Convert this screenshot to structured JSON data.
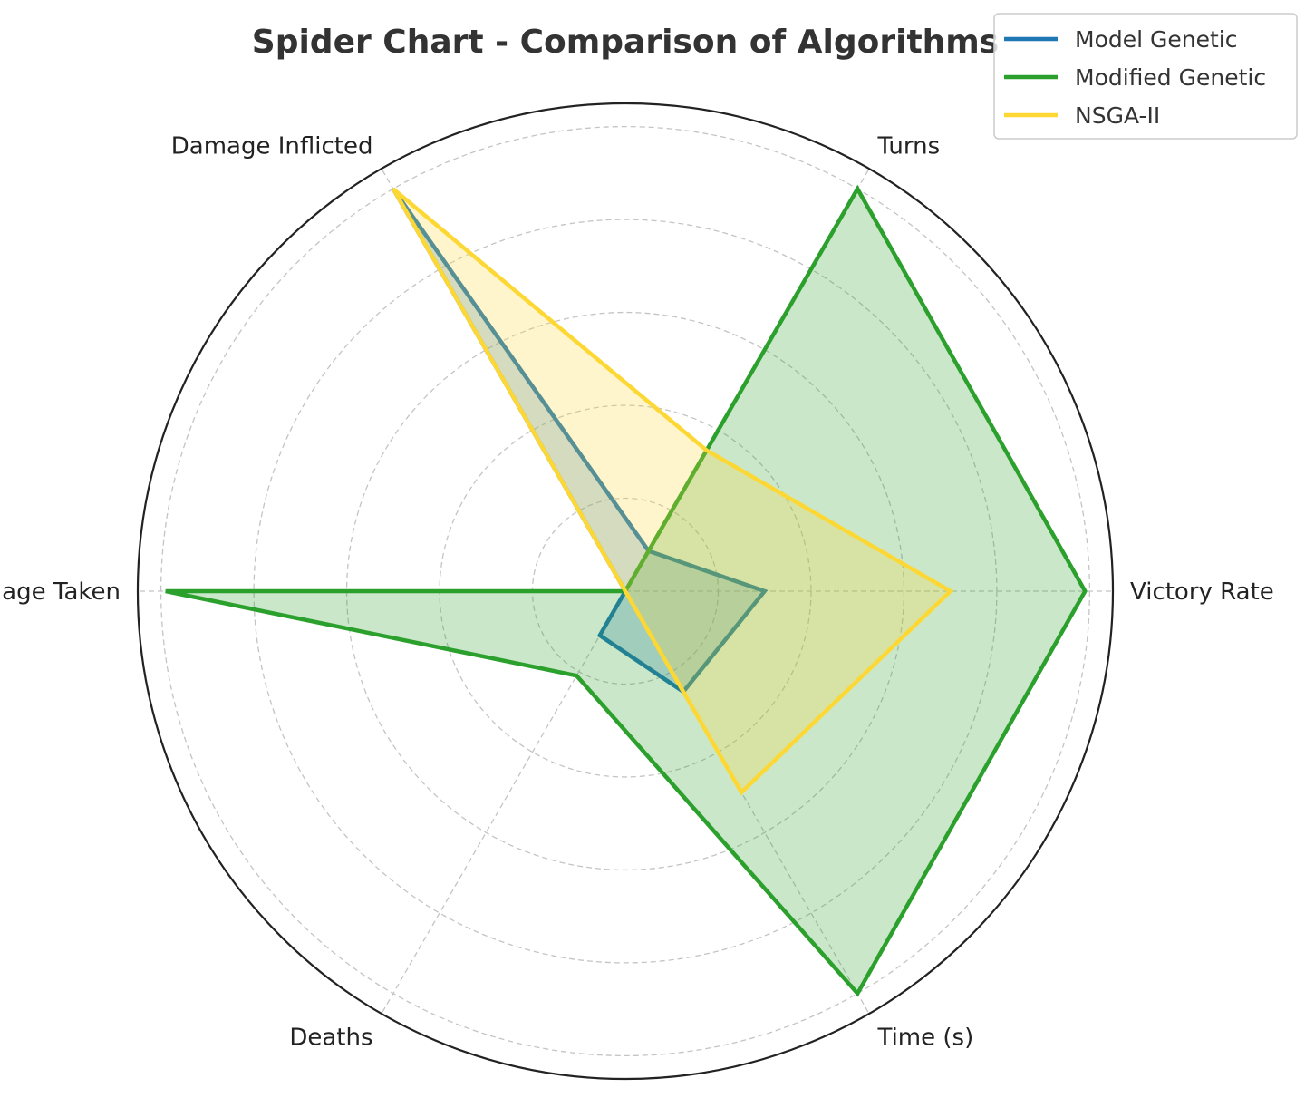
{
  "chart_data": {
    "type": "radar",
    "title": "Spider Chart - Comparison of Algorithms",
    "categories": [
      "Victory Rate",
      "Turns",
      "Damage Inflicted",
      "Damage Taken",
      "Deaths",
      "Time (s)"
    ],
    "rmax": 1.05,
    "grid": true,
    "grid_rings": [
      0.2,
      0.4,
      0.6,
      0.8,
      1.0
    ],
    "legend_position": "top-right",
    "series": [
      {
        "name": "Model Genetic",
        "color": "#1f77b4",
        "values": [
          0.3,
          0.1,
          1.0,
          0.0,
          0.11,
          0.25
        ]
      },
      {
        "name": "Modified Genetic",
        "color": "#2ca02c",
        "values": [
          0.99,
          1.0,
          0.0,
          0.99,
          0.21,
          1.0
        ]
      },
      {
        "name": "NSGA-II",
        "color": "#fdd835",
        "values": [
          0.7,
          0.35,
          1.0,
          0.0,
          0.0,
          0.5
        ]
      }
    ]
  }
}
